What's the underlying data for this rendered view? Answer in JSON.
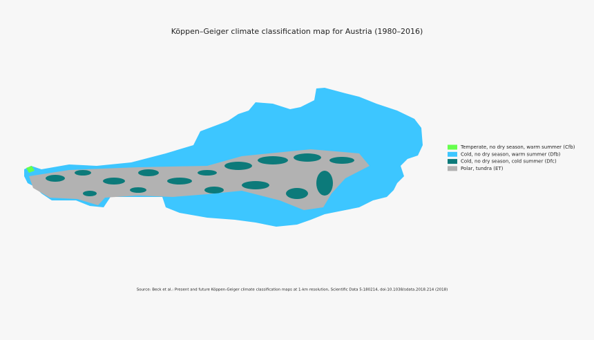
{
  "title": "Köppen–Geiger climate classification map for Austria (1980–2016)",
  "legend": [
    {
      "label": "Temperate, no dry season, warm summer (Cfb)",
      "color": "#66ff4d"
    },
    {
      "label": "Cold, no dry season, warm summer (Dfb)",
      "color": "#3dc6ff"
    },
    {
      "label": "Cold, no dry season, cold summer (Dfc)",
      "color": "#0c7a7a"
    },
    {
      "label": "Polar, tundra (ET)",
      "color": "#b2b2b2"
    }
  ],
  "source": "Source: Beck et al.: Present and future Köppen-Geiger climate classification maps at 1-km resolution, Scientific Data 5:180214, doi:10.1038/sdata.2018.214 (2018)"
}
